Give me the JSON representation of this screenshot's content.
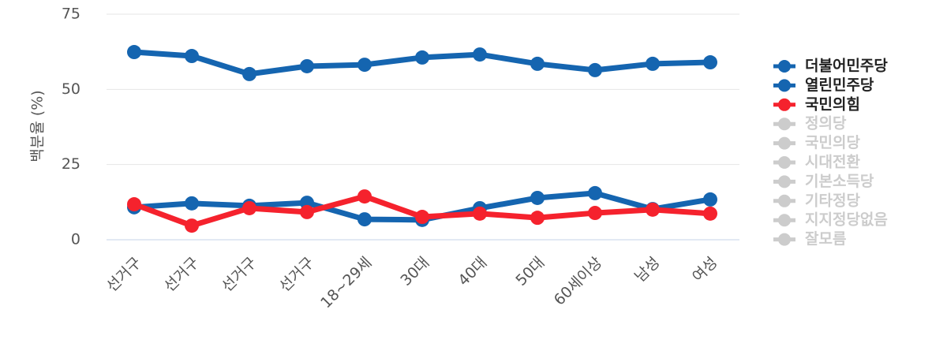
{
  "chart_data": {
    "type": "line",
    "y_label": "백분율 (%)",
    "categories": [
      "선거구",
      "선거구",
      "선거구",
      "선거구",
      "18~29세",
      "30대",
      "40대",
      "50대",
      "60세이상",
      "남성",
      "여성"
    ],
    "ylim": [
      0,
      75
    ],
    "yticks": [
      0,
      25,
      50,
      75
    ],
    "grid": true,
    "legend": "right",
    "series": [
      {
        "name": "더불어민주당",
        "color": "#1565b0",
        "values": [
          62.4,
          61.1,
          55.1,
          57.7,
          58.2,
          60.6,
          61.6,
          58.5,
          56.4,
          58.5,
          59.0
        ]
      },
      {
        "name": "열린민주당",
        "color": "#1565b0",
        "values": [
          10.8,
          12.1,
          11.3,
          12.3,
          6.8,
          6.6,
          10.5,
          13.9,
          15.5,
          10.2,
          13.4
        ]
      },
      {
        "name": "국민의힘",
        "color": "#f5222d",
        "values": [
          11.8,
          4.7,
          10.5,
          9.2,
          14.4,
          7.6,
          8.7,
          7.3,
          8.9,
          10.0,
          8.7
        ]
      },
      {
        "name": "정의당",
        "color": "#cccccc",
        "hidden": true,
        "values": [
          null,
          null,
          null,
          null,
          null,
          null,
          null,
          null,
          null,
          null,
          null
        ]
      },
      {
        "name": "국민의당",
        "color": "#cccccc",
        "hidden": true,
        "values": [
          null,
          null,
          null,
          null,
          null,
          null,
          null,
          null,
          null,
          null,
          null
        ]
      },
      {
        "name": "시대전환",
        "color": "#cccccc",
        "hidden": true,
        "values": [
          null,
          null,
          null,
          null,
          null,
          null,
          null,
          null,
          null,
          null,
          null
        ]
      },
      {
        "name": "기본소득당",
        "color": "#cccccc",
        "hidden": true,
        "values": [
          null,
          null,
          null,
          null,
          null,
          null,
          null,
          null,
          null,
          null,
          null
        ]
      },
      {
        "name": "기타정당",
        "color": "#cccccc",
        "hidden": true,
        "values": [
          null,
          null,
          null,
          null,
          null,
          null,
          null,
          null,
          null,
          null,
          null
        ]
      },
      {
        "name": "지지정당없음",
        "color": "#cccccc",
        "hidden": true,
        "values": [
          null,
          null,
          null,
          null,
          null,
          null,
          null,
          null,
          null,
          null,
          null
        ]
      },
      {
        "name": "잘모름",
        "color": "#cccccc",
        "hidden": true,
        "values": [
          null,
          null,
          null,
          null,
          null,
          null,
          null,
          null,
          null,
          null,
          null
        ]
      }
    ]
  }
}
